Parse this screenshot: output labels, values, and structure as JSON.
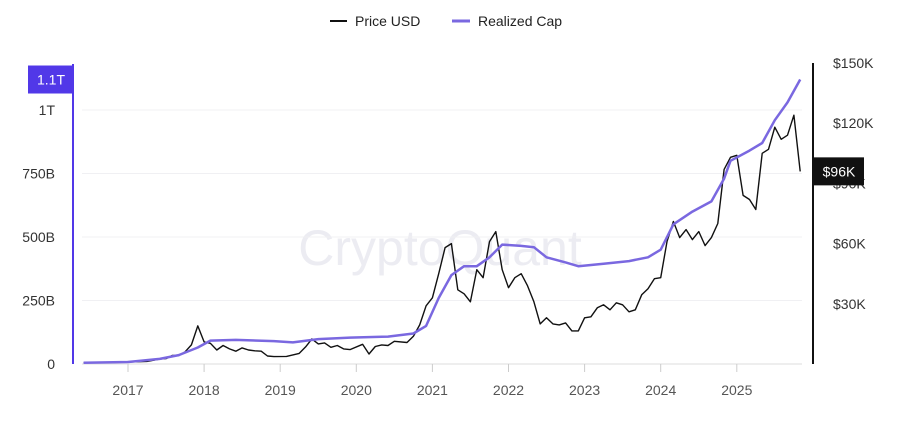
{
  "chart_data": {
    "type": "line",
    "watermark": "CryptoQuant",
    "legend_position": "top-center",
    "grid": true,
    "x_ticks": [
      "2017",
      "2018",
      "2019",
      "2020",
      "2021",
      "2022",
      "2023",
      "2024",
      "2025"
    ],
    "x_range": [
      "2016-06",
      "2025-11"
    ],
    "left_axis": {
      "ticks": [
        {
          "v": 0,
          "label": "0"
        },
        {
          "v": 250000000000.0,
          "label": "250B"
        },
        {
          "v": 500000000000.0,
          "label": "500B"
        },
        {
          "v": 750000000000.0,
          "label": "750B"
        },
        {
          "v": 1000000000000.0,
          "label": "1T"
        }
      ],
      "ylim": [
        0,
        1185000000000.0
      ],
      "current_label": "1.1T",
      "color": "#5138e8"
    },
    "right_axis": {
      "ticks": [
        {
          "v": 30000,
          "label": "$30K"
        },
        {
          "v": 60000,
          "label": "$60K"
        },
        {
          "v": 90000,
          "label": "$90K"
        },
        {
          "v": 120000,
          "label": "$120K"
        },
        {
          "v": 150000,
          "label": "$150K"
        }
      ],
      "ylim": [
        0,
        150000
      ],
      "current_label": "$96K",
      "color": "#111111"
    },
    "series": [
      {
        "name": "Price USD",
        "axis": "right",
        "color": "#111111",
        "points": [
          [
            "2016-06",
            650
          ],
          [
            "2016-09",
            610
          ],
          [
            "2016-12",
            900
          ],
          [
            "2017-02",
            1100
          ],
          [
            "2017-04",
            1300
          ],
          [
            "2017-06",
            2500
          ],
          [
            "2017-07",
            2700
          ],
          [
            "2017-08",
            4300
          ],
          [
            "2017-09",
            4200
          ],
          [
            "2017-10",
            6100
          ],
          [
            "2017-11",
            9500
          ],
          [
            "2017-12",
            19000
          ],
          [
            "2018-01",
            11000
          ],
          [
            "2018-02",
            10300
          ],
          [
            "2018-03",
            7000
          ],
          [
            "2018-04",
            9200
          ],
          [
            "2018-05",
            7500
          ],
          [
            "2018-06",
            6400
          ],
          [
            "2018-07",
            8000
          ],
          [
            "2018-08",
            7000
          ],
          [
            "2018-09",
            6600
          ],
          [
            "2018-10",
            6400
          ],
          [
            "2018-11",
            4000
          ],
          [
            "2018-12",
            3700
          ],
          [
            "2019-02",
            3800
          ],
          [
            "2019-04",
            5300
          ],
          [
            "2019-05",
            8500
          ],
          [
            "2019-06",
            12500
          ],
          [
            "2019-07",
            10000
          ],
          [
            "2019-08",
            10500
          ],
          [
            "2019-09",
            8300
          ],
          [
            "2019-10",
            9200
          ],
          [
            "2019-11",
            7500
          ],
          [
            "2019-12",
            7200
          ],
          [
            "2020-02",
            9800
          ],
          [
            "2020-03",
            5000
          ],
          [
            "2020-04",
            8700
          ],
          [
            "2020-05",
            9500
          ],
          [
            "2020-06",
            9200
          ],
          [
            "2020-07",
            11300
          ],
          [
            "2020-09",
            10700
          ],
          [
            "2020-10",
            13800
          ],
          [
            "2020-11",
            19500
          ],
          [
            "2020-12",
            29000
          ],
          [
            "2021-01",
            33000
          ],
          [
            "2021-02",
            45000
          ],
          [
            "2021-03",
            58000
          ],
          [
            "2021-04",
            60000
          ],
          [
            "2021-05",
            37000
          ],
          [
            "2021-06",
            35000
          ],
          [
            "2021-07",
            31000
          ],
          [
            "2021-08",
            47000
          ],
          [
            "2021-09",
            43000
          ],
          [
            "2021-10",
            61000
          ],
          [
            "2021-11",
            66000
          ],
          [
            "2021-12",
            47000
          ],
          [
            "2022-01",
            38000
          ],
          [
            "2022-02",
            43000
          ],
          [
            "2022-03",
            45000
          ],
          [
            "2022-04",
            39000
          ],
          [
            "2022-05",
            31000
          ],
          [
            "2022-06",
            20000
          ],
          [
            "2022-07",
            23000
          ],
          [
            "2022-08",
            20000
          ],
          [
            "2022-09",
            19500
          ],
          [
            "2022-10",
            20500
          ],
          [
            "2022-11",
            16500
          ],
          [
            "2022-12",
            16500
          ],
          [
            "2023-01",
            23000
          ],
          [
            "2023-02",
            23500
          ],
          [
            "2023-03",
            28000
          ],
          [
            "2023-04",
            29500
          ],
          [
            "2023-05",
            27000
          ],
          [
            "2023-06",
            30500
          ],
          [
            "2023-07",
            29500
          ],
          [
            "2023-08",
            26000
          ],
          [
            "2023-09",
            27000
          ],
          [
            "2023-10",
            34500
          ],
          [
            "2023-11",
            37500
          ],
          [
            "2023-12",
            42500
          ],
          [
            "2024-01",
            43000
          ],
          [
            "2024-02",
            61000
          ],
          [
            "2024-03",
            71000
          ],
          [
            "2024-04",
            63000
          ],
          [
            "2024-05",
            67000
          ],
          [
            "2024-06",
            62000
          ],
          [
            "2024-07",
            66000
          ],
          [
            "2024-08",
            59000
          ],
          [
            "2024-09",
            63000
          ],
          [
            "2024-10",
            70000
          ],
          [
            "2024-11",
            97000
          ],
          [
            "2024-12",
            103000
          ],
          [
            "2025-01",
            104000
          ],
          [
            "2025-02",
            84000
          ],
          [
            "2025-03",
            82000
          ],
          [
            "2025-04",
            77000
          ],
          [
            "2025-05",
            105000
          ],
          [
            "2025-06",
            107000
          ],
          [
            "2025-07",
            118000
          ],
          [
            "2025-08",
            112000
          ],
          [
            "2025-09",
            114000
          ],
          [
            "2025-10",
            124000
          ],
          [
            "2025-11",
            96000
          ]
        ]
      },
      {
        "name": "Realized Cap",
        "axis": "left",
        "color": "#7a68e0",
        "points": [
          [
            "2016-06",
            5000000000.0
          ],
          [
            "2017-01",
            8000000000.0
          ],
          [
            "2017-06",
            20000000000.0
          ],
          [
            "2017-09",
            35000000000.0
          ],
          [
            "2017-12",
            65000000000.0
          ],
          [
            "2018-02",
            92000000000.0
          ],
          [
            "2018-06",
            95000000000.0
          ],
          [
            "2018-12",
            90000000000.0
          ],
          [
            "2019-03",
            85000000000.0
          ],
          [
            "2019-07",
            98000000000.0
          ],
          [
            "2019-12",
            104000000000.0
          ],
          [
            "2020-06",
            108000000000.0
          ],
          [
            "2020-10",
            120000000000.0
          ],
          [
            "2020-12",
            150000000000.0
          ],
          [
            "2021-02",
            260000000000.0
          ],
          [
            "2021-04",
            350000000000.0
          ],
          [
            "2021-06",
            385000000000.0
          ],
          [
            "2021-08",
            385000000000.0
          ],
          [
            "2021-10",
            420000000000.0
          ],
          [
            "2021-12",
            470000000000.0
          ],
          [
            "2022-03",
            465000000000.0
          ],
          [
            "2022-05",
            460000000000.0
          ],
          [
            "2022-07",
            420000000000.0
          ],
          [
            "2022-10",
            400000000000.0
          ],
          [
            "2022-12",
            385000000000.0
          ],
          [
            "2023-04",
            395000000000.0
          ],
          [
            "2023-08",
            405000000000.0
          ],
          [
            "2023-11",
            420000000000.0
          ],
          [
            "2024-01",
            450000000000.0
          ],
          [
            "2024-03",
            550000000000.0
          ],
          [
            "2024-06",
            600000000000.0
          ],
          [
            "2024-09",
            640000000000.0
          ],
          [
            "2024-11",
            730000000000.0
          ],
          [
            "2024-12",
            800000000000.0
          ],
          [
            "2025-03",
            840000000000.0
          ],
          [
            "2025-05",
            870000000000.0
          ],
          [
            "2025-07",
            960000000000.0
          ],
          [
            "2025-09",
            1030000000000.0
          ],
          [
            "2025-11",
            1120000000000.0
          ]
        ]
      }
    ]
  }
}
